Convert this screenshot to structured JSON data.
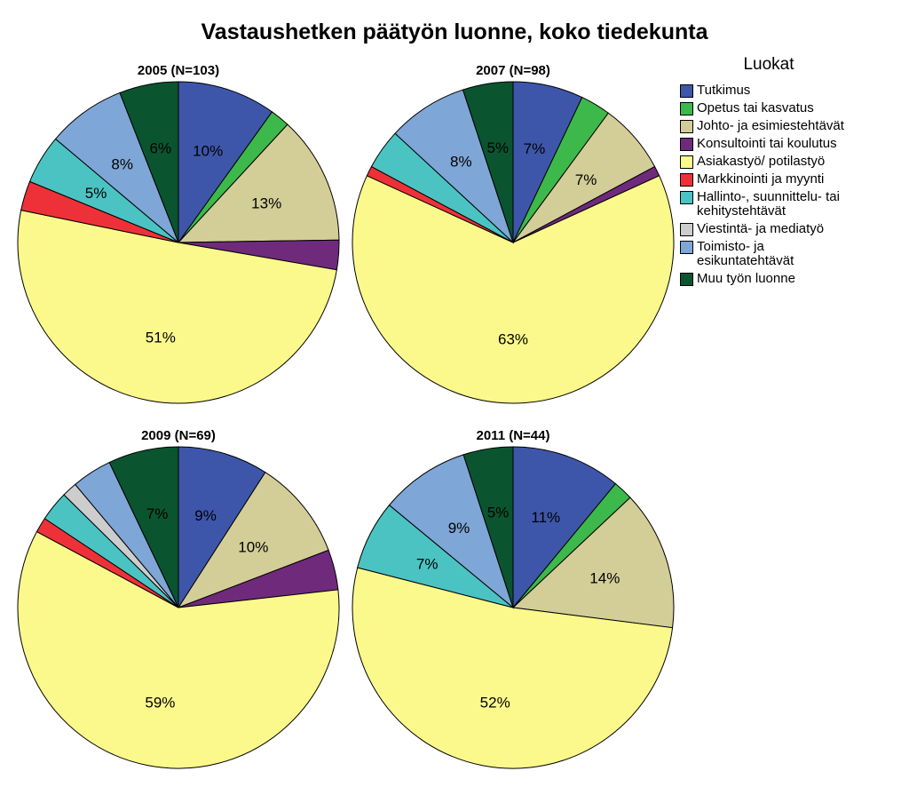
{
  "title": "Vastaushetken päätyön luonne, koko tiedekunta",
  "legend_title": "Luokat",
  "legend": [
    {
      "label": "Tutkimus",
      "color": "#3e56a9"
    },
    {
      "label": "Opetus tai kasvatus",
      "color": "#3db84a"
    },
    {
      "label": "Johto- ja esimiestehtävät",
      "color": "#d3cd98"
    },
    {
      "label": "Konsultointi tai koulutus",
      "color": "#6f2a7c"
    },
    {
      "label": "Asiakastyö/ potilastyö",
      "color": "#fbf98c"
    },
    {
      "label": "Markkinointi ja myynti",
      "color": "#ee3138"
    },
    {
      "label": "Hallinto-, suunnittelu- tai\nkehitystehtävät",
      "color": "#4bc3c3"
    },
    {
      "label": "Viestintä- ja mediatyö",
      "color": "#cdcdcd"
    },
    {
      "label": "Toimisto- ja\nesikuntatehtävät",
      "color": "#7ea6d6"
    },
    {
      "label": "Muu työn luonne",
      "color": "#0b5430"
    }
  ],
  "chart_data": [
    {
      "type": "pie",
      "title": "2005 (N=103)",
      "categories": [
        "Tutkimus",
        "Opetus tai kasvatus",
        "Johto- ja esimiestehtävät",
        "Konsultointi tai koulutus",
        "Asiakastyö/ potilastyö",
        "Markkinointi ja myynti",
        "Hallinto-, suunnittelu- tai kehitystehtävät",
        "Viestintä- ja mediatyö",
        "Toimisto- ja esikuntatehtävät",
        "Muu työn luonne"
      ],
      "values": [
        10,
        2,
        13,
        3,
        51,
        3,
        5,
        0,
        8,
        6
      ],
      "labels": [
        "10%",
        "",
        "13%",
        "",
        "51%",
        "",
        "5%",
        "",
        "8%",
        "6%"
      ]
    },
    {
      "type": "pie",
      "title": "2007 (N=98)",
      "categories": [
        "Tutkimus",
        "Opetus tai kasvatus",
        "Johto- ja esimiestehtävät",
        "Konsultointi tai koulutus",
        "Asiakastyö/ potilastyö",
        "Markkinointi ja myynti",
        "Hallinto-, suunnittelu- tai kehitystehtävät",
        "Viestintä- ja mediatyö",
        "Toimisto- ja esikuntatehtävät",
        "Muu työn luonne"
      ],
      "values": [
        7,
        3,
        7,
        1,
        63,
        1,
        4,
        0,
        8,
        5
      ],
      "labels": [
        "7%",
        "",
        "7%",
        "",
        "63%",
        "",
        "",
        "",
        "8%",
        "5%"
      ]
    },
    {
      "type": "pie",
      "title": "2009 (N=69)",
      "categories": [
        "Tutkimus",
        "Opetus tai kasvatus",
        "Johto- ja esimiestehtävät",
        "Konsultointi tai koulutus",
        "Asiakastyö/ potilastyö",
        "Markkinointi ja myynti",
        "Hallinto-, suunnittelu- tai kehitystehtävät",
        "Viestintä- ja mediatyö",
        "Toimisto- ja esikuntatehtävät",
        "Muu työn luonne"
      ],
      "values": [
        9,
        0,
        10,
        4,
        59,
        1.5,
        3,
        1.5,
        4,
        7
      ],
      "labels": [
        "9%",
        "",
        "10%",
        "",
        "59%",
        "",
        "",
        "",
        "",
        "7%"
      ]
    },
    {
      "type": "pie",
      "title": "2011 (N=44)",
      "categories": [
        "Tutkimus",
        "Opetus tai kasvatus",
        "Johto- ja esimiestehtävät",
        "Konsultointi tai koulutus",
        "Asiakastyö/ potilastyö",
        "Markkinointi ja myynti",
        "Hallinto-, suunnittelu- tai kehitystehtävät",
        "Viestintä- ja mediatyö",
        "Toimisto- ja esikuntatehtävät",
        "Muu työn luonne"
      ],
      "values": [
        11,
        2,
        14,
        0,
        52,
        0,
        7,
        0,
        9,
        5
      ],
      "labels": [
        "11%",
        "",
        "14%",
        "",
        "52%",
        "",
        "7%",
        "",
        "9%",
        "5%"
      ]
    }
  ]
}
